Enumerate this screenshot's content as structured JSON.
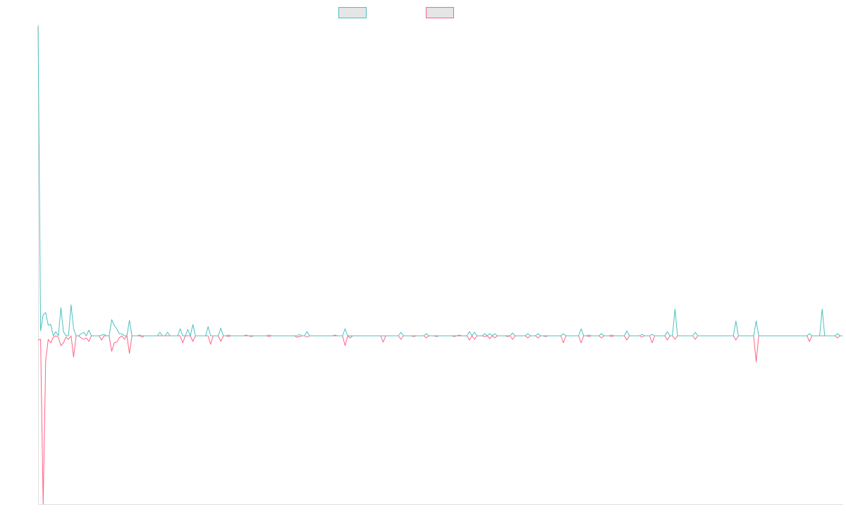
{
  "chart_data": {
    "type": "line",
    "title": "",
    "xlabel": "",
    "ylabel": "",
    "x_range": [
      0,
      317
    ],
    "ylim": [
      -239,
      440
    ],
    "grid": false,
    "legend_position": "top",
    "series": [
      {
        "name": "",
        "color": "#4bc0c0",
        "points": [
          [
            0,
            440
          ],
          [
            1,
            7
          ],
          [
            2,
            30
          ],
          [
            3,
            33
          ],
          [
            4,
            15
          ],
          [
            5,
            16
          ],
          [
            7,
            6
          ],
          [
            9,
            40
          ],
          [
            10,
            6
          ],
          [
            13,
            44
          ],
          [
            14,
            10
          ],
          [
            17,
            3
          ],
          [
            18,
            5
          ],
          [
            20,
            8
          ],
          [
            25,
            1
          ],
          [
            26,
            2
          ],
          [
            29,
            23
          ],
          [
            30,
            15
          ],
          [
            31,
            10
          ],
          [
            32,
            3
          ],
          [
            33,
            3
          ],
          [
            36,
            22
          ],
          [
            40,
            1
          ],
          [
            48,
            5
          ],
          [
            51,
            5
          ],
          [
            56,
            10
          ],
          [
            59,
            9
          ],
          [
            61,
            16
          ],
          [
            67,
            13
          ],
          [
            72,
            11
          ],
          [
            75,
            1
          ],
          [
            82,
            1
          ],
          [
            91,
            1
          ],
          [
            103,
            2
          ],
          [
            106,
            6
          ],
          [
            117,
            1
          ],
          [
            121,
            10
          ],
          [
            143,
            5
          ],
          [
            153,
            3
          ],
          [
            166,
            1
          ],
          [
            170,
            6
          ],
          [
            172,
            5
          ],
          [
            176,
            3
          ],
          [
            178,
            3
          ],
          [
            180,
            3
          ],
          [
            187,
            4
          ],
          [
            193,
            3
          ],
          [
            197,
            3
          ],
          [
            207,
            3
          ],
          [
            214,
            10
          ],
          [
            217,
            1
          ],
          [
            222,
            3
          ],
          [
            226,
            1
          ],
          [
            232,
            7
          ],
          [
            238,
            2
          ],
          [
            242,
            2
          ],
          [
            248,
            6
          ],
          [
            251,
            38
          ],
          [
            259,
            5
          ],
          [
            275,
            21
          ],
          [
            283,
            21
          ],
          [
            304,
            3
          ],
          [
            309,
            38
          ],
          [
            315,
            3
          ]
        ]
      },
      {
        "name": "",
        "color": "#ff6384",
        "points": [
          [
            0,
            -6
          ],
          [
            1,
            -5
          ],
          [
            2,
            -239
          ],
          [
            3,
            -35
          ],
          [
            4,
            -5
          ],
          [
            5,
            -10
          ],
          [
            6,
            -2
          ],
          [
            8,
            -2
          ],
          [
            9,
            -14
          ],
          [
            10,
            -10
          ],
          [
            11,
            -2
          ],
          [
            12,
            -5
          ],
          [
            14,
            -30
          ],
          [
            17,
            -3
          ],
          [
            18,
            -5
          ],
          [
            19,
            -3
          ],
          [
            20,
            -8
          ],
          [
            25,
            -6
          ],
          [
            29,
            -22
          ],
          [
            30,
            -10
          ],
          [
            31,
            -9
          ],
          [
            32,
            -3
          ],
          [
            34,
            -5
          ],
          [
            36,
            -25
          ],
          [
            41,
            -2
          ],
          [
            57,
            -10
          ],
          [
            61,
            -8
          ],
          [
            68,
            -12
          ],
          [
            72,
            -8
          ],
          [
            75,
            -1
          ],
          [
            84,
            -1
          ],
          [
            91,
            -1
          ],
          [
            102,
            -2
          ],
          [
            103,
            -1
          ],
          [
            106,
            -2
          ],
          [
            121,
            -14
          ],
          [
            123,
            -3
          ],
          [
            136,
            -9
          ],
          [
            143,
            -5
          ],
          [
            148,
            -1
          ],
          [
            153,
            -3
          ],
          [
            157,
            -1
          ],
          [
            164,
            -1
          ],
          [
            170,
            -6
          ],
          [
            172,
            -5
          ],
          [
            176,
            -1
          ],
          [
            178,
            -4
          ],
          [
            180,
            -3
          ],
          [
            185,
            -1
          ],
          [
            187,
            -5
          ],
          [
            193,
            -3
          ],
          [
            197,
            -3
          ],
          [
            200,
            -1
          ],
          [
            207,
            -10
          ],
          [
            214,
            -10
          ],
          [
            217,
            -1
          ],
          [
            222,
            -3
          ],
          [
            226,
            -1
          ],
          [
            232,
            -6
          ],
          [
            238,
            -2
          ],
          [
            242,
            -10
          ],
          [
            248,
            -6
          ],
          [
            251,
            -5
          ],
          [
            259,
            -5
          ],
          [
            275,
            -6
          ],
          [
            283,
            -37
          ],
          [
            304,
            -8
          ],
          [
            315,
            -3
          ]
        ]
      }
    ]
  }
}
